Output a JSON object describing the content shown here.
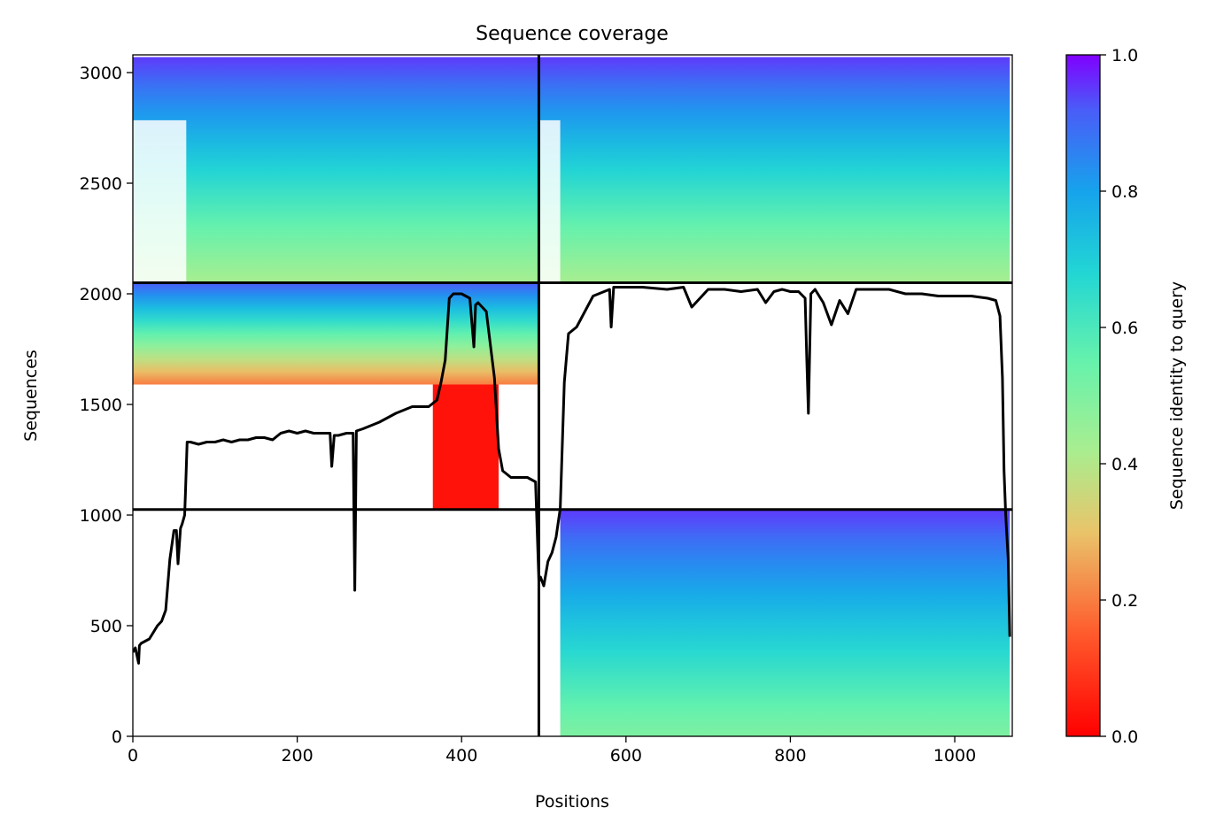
{
  "chart_data": {
    "type": "heatmap",
    "title": "Sequence coverage",
    "xlabel": "Positions",
    "ylabel": "Sequences",
    "xlim": [
      0,
      1070
    ],
    "ylim": [
      0,
      3080
    ],
    "xticks": [
      0,
      200,
      400,
      600,
      800,
      1000
    ],
    "yticks": [
      0,
      500,
      1000,
      1500,
      2000,
      2500,
      3000
    ],
    "colorbar": {
      "label": "Sequence identity to query",
      "range": [
        0,
        1
      ],
      "ticks": [
        "0.0",
        "0.2",
        "0.4",
        "0.6",
        "0.8",
        "1.0"
      ],
      "colormap": "rainbow_r"
    },
    "divider_x": 494,
    "divider_y": [
      1025,
      2050
    ],
    "blocks": [
      {
        "name": "chain-A-top",
        "x": [
          0,
          494
        ],
        "y": [
          2050,
          3070
        ],
        "identity_top": 0.95,
        "identity_bottom": 0.42,
        "gap_left_x": 65
      },
      {
        "name": "chain-B-top",
        "x": [
          494,
          1067
        ],
        "y": [
          2050,
          3070
        ],
        "identity_top": 0.95,
        "identity_bottom": 0.42,
        "gap_left_x": 520
      },
      {
        "name": "chain-A-mid",
        "x": [
          0,
          494
        ],
        "y": [
          1590,
          2050
        ],
        "identity_top": 0.92,
        "identity_bottom": 0.2
      },
      {
        "name": "chain-A-mid-red",
        "x": [
          365,
          445
        ],
        "y": [
          1030,
          1590
        ],
        "identity_top": 0.03,
        "identity_bottom": 0.03
      },
      {
        "name": "chain-B-bottom",
        "x": [
          520,
          1067
        ],
        "y": [
          0,
          1025
        ],
        "identity_top": 0.95,
        "identity_bottom": 0.5
      }
    ],
    "coverage_line": {
      "x": [
        0,
        3,
        7,
        8,
        10,
        15,
        20,
        25,
        30,
        35,
        40,
        45,
        50,
        53,
        55,
        58,
        60,
        63,
        64,
        66,
        70,
        80,
        90,
        100,
        110,
        120,
        130,
        140,
        150,
        160,
        170,
        180,
        190,
        200,
        210,
        220,
        230,
        240,
        242,
        245,
        250,
        260,
        268,
        270,
        272,
        280,
        300,
        320,
        340,
        360,
        370,
        375,
        380,
        385,
        390,
        400,
        410,
        415,
        417,
        420,
        430,
        440,
        445,
        450,
        460,
        470,
        480,
        490,
        494,
        496,
        500,
        505,
        510,
        515,
        520,
        525,
        530,
        540,
        560,
        580,
        582,
        585,
        600,
        620,
        650,
        670,
        680,
        700,
        720,
        740,
        760,
        770,
        780,
        790,
        800,
        810,
        818,
        820,
        822,
        825,
        830,
        840,
        850,
        860,
        870,
        880,
        900,
        920,
        940,
        960,
        980,
        1000,
        1020,
        1040,
        1050,
        1055,
        1058,
        1060,
        1062,
        1065,
        1067
      ],
      "y": [
        380,
        400,
        330,
        410,
        420,
        430,
        440,
        470,
        500,
        520,
        570,
        800,
        930,
        930,
        780,
        940,
        960,
        1000,
        1100,
        1330,
        1330,
        1320,
        1330,
        1330,
        1340,
        1330,
        1340,
        1340,
        1350,
        1350,
        1340,
        1370,
        1380,
        1370,
        1380,
        1370,
        1370,
        1370,
        1220,
        1360,
        1360,
        1370,
        1370,
        660,
        1380,
        1390,
        1420,
        1460,
        1490,
        1490,
        1520,
        1600,
        1700,
        1980,
        2000,
        2000,
        1980,
        1760,
        1950,
        1960,
        1920,
        1620,
        1300,
        1200,
        1170,
        1170,
        1170,
        1150,
        700,
        720,
        680,
        790,
        830,
        900,
        1030,
        1600,
        1820,
        1850,
        1990,
        2020,
        1850,
        2030,
        2030,
        2030,
        2020,
        2030,
        1940,
        2020,
        2020,
        2010,
        2020,
        1960,
        2010,
        2020,
        2010,
        2010,
        1980,
        1700,
        1460,
        2000,
        2020,
        1960,
        1860,
        1970,
        1910,
        2020,
        2020,
        2020,
        2000,
        2000,
        1990,
        1990,
        1990,
        1980,
        1970,
        1900,
        1620,
        1200,
        1000,
        800,
        450
      ]
    }
  }
}
